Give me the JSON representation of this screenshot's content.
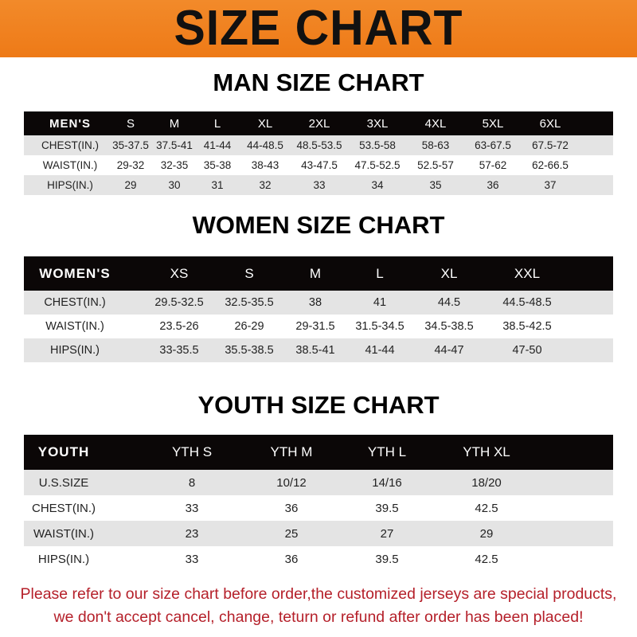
{
  "banner_title": "SIZE CHART",
  "colors": {
    "banner": "#ef7f1f",
    "header_row": "#0b0707",
    "stripe": "#e4e4e4",
    "note": "#b5202a"
  },
  "men": {
    "title": "MAN SIZE CHART",
    "header": [
      "MEN'S",
      "S",
      "M",
      "L",
      "XL",
      "2XL",
      "3XL",
      "4XL",
      "5XL",
      "6XL"
    ],
    "rows": [
      [
        "CHEST(IN.)",
        "35-37.5",
        "37.5-41",
        "41-44",
        "44-48.5",
        "48.5-53.5",
        "53.5-58",
        "58-63",
        "63-67.5",
        "67.5-72"
      ],
      [
        "WAIST(IN.)",
        "29-32",
        "32-35",
        "35-38",
        "38-43",
        "43-47.5",
        "47.5-52.5",
        "52.5-57",
        "57-62",
        "62-66.5"
      ],
      [
        "HIPS(IN.)",
        "29",
        "30",
        "31",
        "32",
        "33",
        "34",
        "35",
        "36",
        "37"
      ]
    ]
  },
  "women": {
    "title": "WOMEN SIZE CHART",
    "header": [
      "WOMEN'S",
      "XS",
      "S",
      "M",
      "L",
      "XL",
      "XXL"
    ],
    "rows": [
      [
        "CHEST(IN.)",
        "29.5-32.5",
        "32.5-35.5",
        "38",
        "41",
        "44.5",
        "44.5-48.5"
      ],
      [
        "WAIST(IN.)",
        "23.5-26",
        "26-29",
        "29-31.5",
        "31.5-34.5",
        "34.5-38.5",
        "38.5-42.5"
      ],
      [
        "HIPS(IN.)",
        "33-35.5",
        "35.5-38.5",
        "38.5-41",
        "41-44",
        "44-47",
        "47-50"
      ]
    ]
  },
  "youth": {
    "title": "YOUTH SIZE CHART",
    "header": [
      "YOUTH",
      "YTH S",
      "YTH M",
      "YTH L",
      "YTH XL"
    ],
    "rows": [
      [
        "U.S.SIZE",
        "8",
        "10/12",
        "14/16",
        "18/20"
      ],
      [
        "CHEST(IN.)",
        "33",
        "36",
        "39.5",
        "42.5"
      ],
      [
        "WAIST(IN.)",
        "23",
        "25",
        "27",
        "29"
      ],
      [
        "HIPS(IN.)",
        "33",
        "36",
        "39.5",
        "42.5"
      ]
    ]
  },
  "note": {
    "line1": "Please refer to our size chart before order,the customized jerseys are special products,",
    "line2": "we don't accept cancel, change, teturn or refund after order has been placed!"
  }
}
